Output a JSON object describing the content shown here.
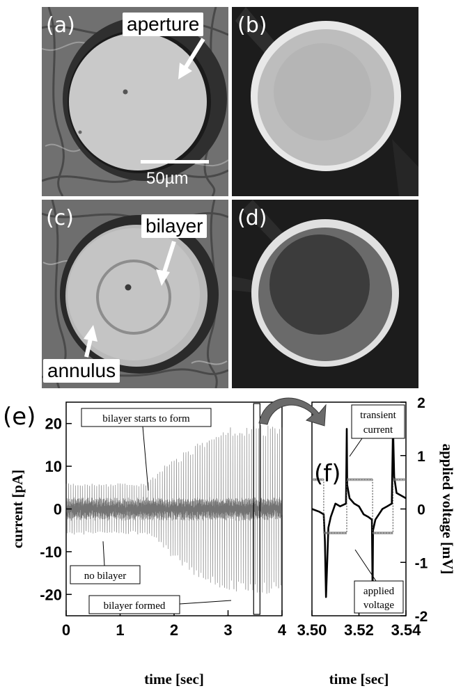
{
  "panels": {
    "a": {
      "label": "(a)",
      "callout": "aperture",
      "scale_bar": "50µm"
    },
    "b": {
      "label": "(b)"
    },
    "c": {
      "label": "(c)",
      "callout_top": "bilayer",
      "callout_bottom": "annulus"
    },
    "d": {
      "label": "(d)"
    }
  },
  "colors": {
    "trace": "#444444",
    "axis": "#000000",
    "micro_bg": "#6c6c6c",
    "fluor_bg": "#1c1c1c"
  },
  "chart_data": [
    {
      "type": "line",
      "panel_label": "(e)",
      "xlabel": "time [sec]",
      "ylabel": "current [pA]",
      "xlim": [
        0,
        4
      ],
      "ylim": [
        -25,
        25
      ],
      "xticks": [
        0,
        1,
        2,
        3,
        4
      ],
      "yticks": [
        -20,
        -10,
        0,
        10,
        20
      ],
      "annotations": [
        "bilayer starts to form",
        "no bilayer",
        "bilayer formed"
      ],
      "envelope": {
        "x": [
          0,
          0.5,
          1.0,
          1.5,
          1.8,
          2.0,
          2.5,
          3.0,
          3.5,
          4.0
        ],
        "upper": [
          6,
          6,
          6,
          6,
          10,
          12,
          16,
          19,
          20,
          20
        ],
        "lower": [
          -6,
          -6,
          -6,
          -6,
          -9,
          -12,
          -17,
          -19.5,
          -20,
          -20
        ]
      },
      "frequency_hz": 23
    },
    {
      "type": "line",
      "panel_label": "(f)",
      "xlabel": "time [sec]",
      "ylabel": "applied voltage [mV]",
      "xlim": [
        3.5,
        3.54
      ],
      "ylim": [
        -2,
        2
      ],
      "xtick_labels": [
        "3.50",
        "3.52",
        "3.54"
      ],
      "yticks": [
        -2,
        -1,
        0,
        1,
        2
      ],
      "annotations": [
        "transient current",
        "applied voltage"
      ],
      "series": [
        {
          "role": "current",
          "x": [
            3.5,
            3.503,
            3.505,
            3.5055,
            3.506,
            3.507,
            3.508,
            3.51,
            3.512,
            3.5145,
            3.5148,
            3.515,
            3.516,
            3.518,
            3.52,
            3.522,
            3.524,
            3.5255,
            3.5258,
            3.526,
            3.527,
            3.53,
            3.532,
            3.534,
            3.5345,
            3.535,
            3.536,
            3.54
          ],
          "y": [
            0,
            -0.05,
            -0.1,
            -0.6,
            -1.65,
            -0.35,
            -0.15,
            0.1,
            0.05,
            0.1,
            1.5,
            0.45,
            0.2,
            0.1,
            0.05,
            -0.1,
            -0.15,
            -0.2,
            -1.6,
            -0.4,
            -0.2,
            0,
            0.05,
            0.1,
            1.55,
            0.6,
            0.3,
            0.2
          ]
        },
        {
          "role": "applied voltage",
          "x": [
            3.5,
            3.505,
            3.505,
            3.5148,
            3.5148,
            3.5258,
            3.5258,
            3.5345,
            3.5345,
            3.54
          ],
          "y": [
            0.55,
            0.55,
            -0.45,
            -0.45,
            0.55,
            0.55,
            -0.45,
            -0.45,
            0.55,
            0.55
          ]
        }
      ]
    }
  ]
}
